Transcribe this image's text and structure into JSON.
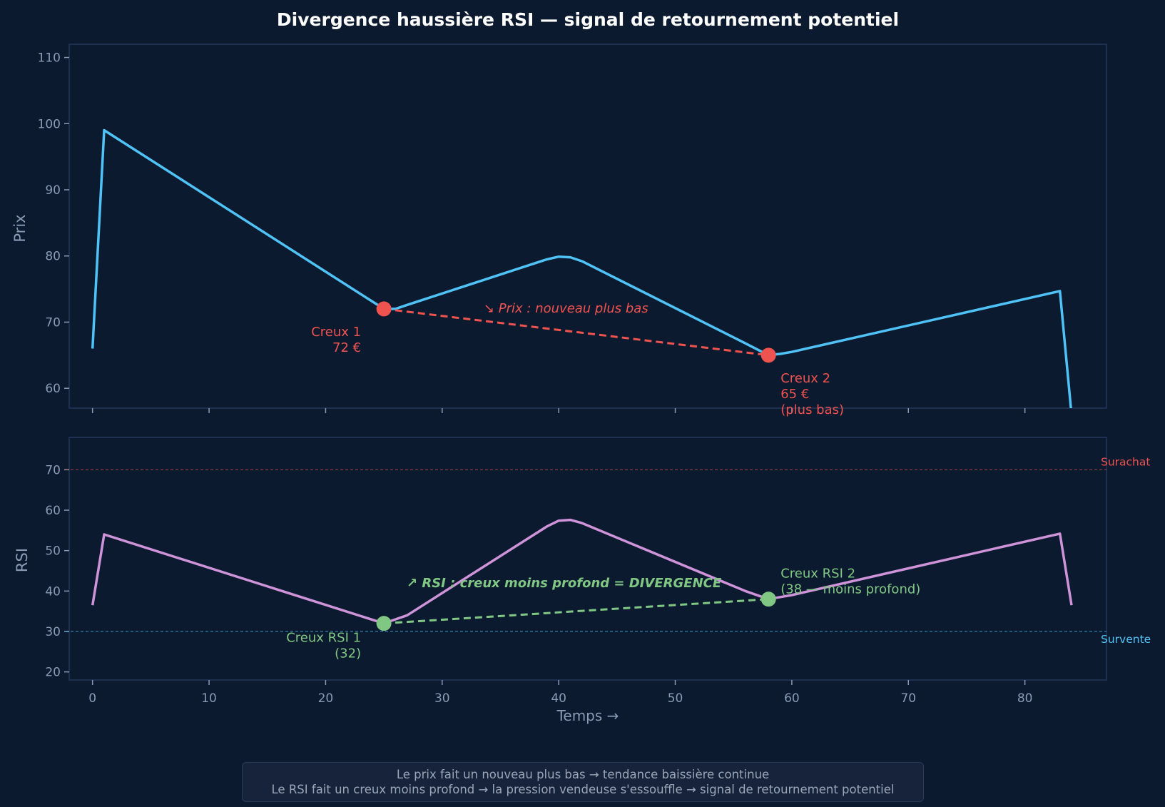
{
  "figure": {
    "title": "Divergence haussière RSI — signal de retournement potentiel",
    "caption_lines": [
      "Le prix fait un nouveau plus bas → tendance baissière continue",
      "Le RSI fait un creux moins profond → la pression vendeuse s'essouffle → signal de retournement potentiel"
    ]
  },
  "colors": {
    "background": "#0b1a2e",
    "price_line": "#4fc3f7",
    "rsi_line": "#ce93d8",
    "price_marker": "#ef5350",
    "rsi_marker": "#81c784",
    "overbought": "#ef5350",
    "oversold": "#4fc3f7",
    "axis_text": "#8a9bb3"
  },
  "chart_data": [
    {
      "type": "line",
      "panel": "price",
      "ylabel": "Prix",
      "xlim": [
        -2,
        87
      ],
      "ylim": [
        57,
        112
      ],
      "yticks": [
        60,
        70,
        80,
        90,
        100,
        110
      ],
      "grid": false,
      "series": [
        {
          "x": [
            0,
            1,
            25,
            26,
            27,
            39,
            40,
            41,
            42,
            56,
            58,
            59,
            60,
            83,
            84
          ],
          "y": [
            66,
            99,
            72,
            72,
            72.6,
            79.5,
            79.9,
            79.8,
            79.2,
            66.8,
            65,
            65.2,
            65.5,
            74.7,
            56
          ]
        }
      ],
      "markers": [
        {
          "x": 25,
          "y": 72,
          "label_line1": "Creux 1",
          "label_line2": "72 €"
        },
        {
          "x": 58,
          "y": 65,
          "label_line1": "Creux 2",
          "label_line2": "65 €",
          "label_line3": "(plus bas)"
        }
      ],
      "trend_annotation": "↘ Prix : nouveau plus bas"
    },
    {
      "type": "line",
      "panel": "rsi",
      "ylabel": "RSI",
      "xlabel": "Temps →",
      "xlim": [
        -2,
        87
      ],
      "ylim": [
        18,
        78
      ],
      "xticks": [
        0,
        10,
        20,
        30,
        40,
        50,
        60,
        70,
        80
      ],
      "yticks": [
        20,
        30,
        40,
        50,
        60,
        70
      ],
      "grid": false,
      "series": [
        {
          "x": [
            0,
            1,
            25,
            26,
            27,
            39,
            40,
            41,
            42,
            56,
            58,
            59,
            60,
            83,
            84
          ],
          "y": [
            36.5,
            54,
            32,
            33,
            34,
            56,
            57.4,
            57.6,
            56.8,
            40,
            38,
            38.5,
            39,
            54.2,
            36.5
          ]
        }
      ],
      "reference_lines": [
        {
          "y": 70,
          "label": "Surachat"
        },
        {
          "y": 30,
          "label": "Survente"
        }
      ],
      "markers": [
        {
          "x": 25,
          "y": 32,
          "label_line1": "Creux RSI 1",
          "label_line2": "(32)"
        },
        {
          "x": 58,
          "y": 38,
          "label_line1": "Creux RSI 2",
          "label_line2": "(38 — moins profond)"
        }
      ],
      "trend_annotation": "↗ RSI : creux moins profond = DIVERGENCE"
    }
  ]
}
